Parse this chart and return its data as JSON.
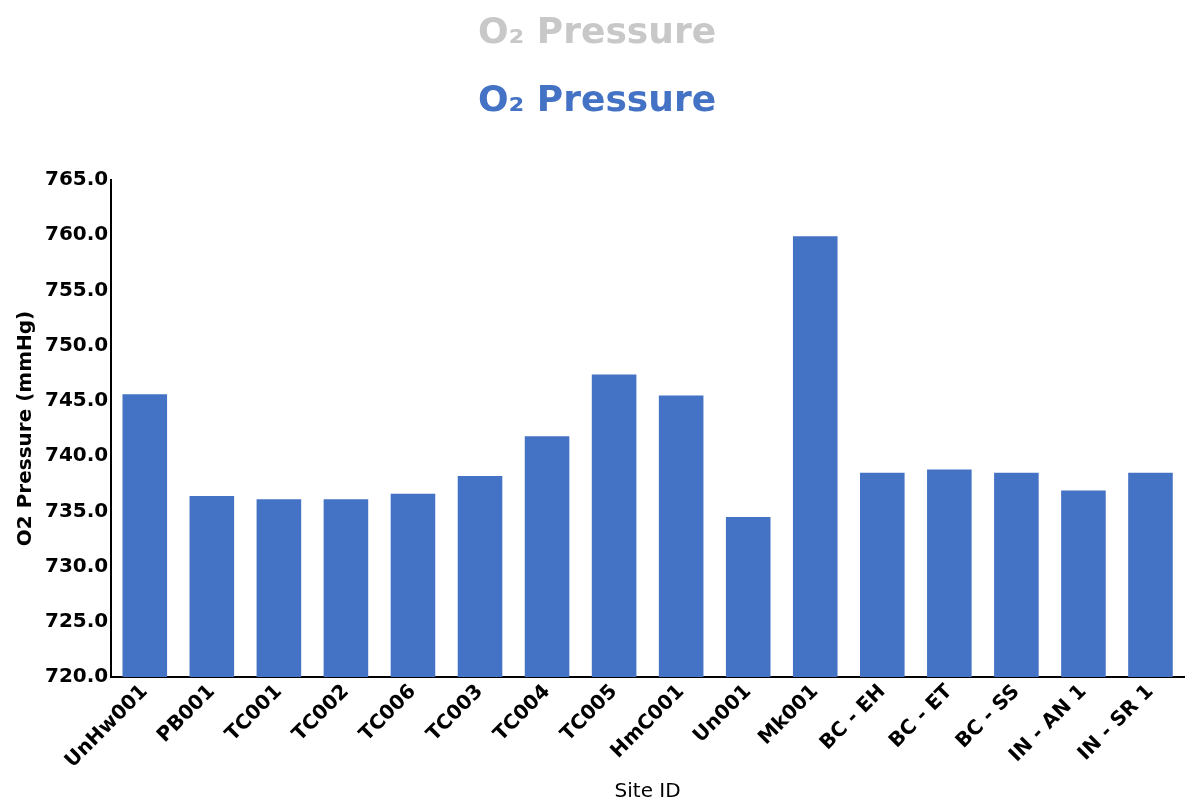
{
  "chart_data": {
    "type": "bar",
    "title": "O₂ Pressure",
    "subtitle": "O₂ Pressure",
    "xlabel": "Site ID",
    "ylabel": "O2 Pressure (mmHg)",
    "categories": [
      "UnHw001",
      "PB001",
      "TC001",
      "TC002",
      "TC006",
      "TC003",
      "TC004",
      "TC005",
      "HmC001",
      "Un001",
      "Mk001",
      "BC - EH",
      "BC - ET",
      "BC - SS",
      "IN - AN 1",
      "IN - SR 1"
    ],
    "values": [
      745.6,
      736.4,
      736.1,
      736.1,
      736.6,
      738.2,
      741.8,
      747.4,
      745.5,
      734.5,
      759.9,
      738.5,
      738.8,
      738.5,
      736.9,
      738.5
    ],
    "color": "#4472c4",
    "ylim": [
      720,
      765
    ],
    "yticks": [
      {
        "value": 720,
        "label": "720.0"
      },
      {
        "value": 725,
        "label": "725.0"
      },
      {
        "value": 730,
        "label": "730.0"
      },
      {
        "value": 735,
        "label": "735.0"
      },
      {
        "value": 740,
        "label": "740.0"
      },
      {
        "value": 745,
        "label": "745.0"
      },
      {
        "value": 750,
        "label": "750.0"
      },
      {
        "value": 755,
        "label": "755.0"
      },
      {
        "value": 760,
        "label": "760.0"
      },
      {
        "value": 765,
        "label": "765.0"
      }
    ],
    "grid": false,
    "legend": false
  }
}
